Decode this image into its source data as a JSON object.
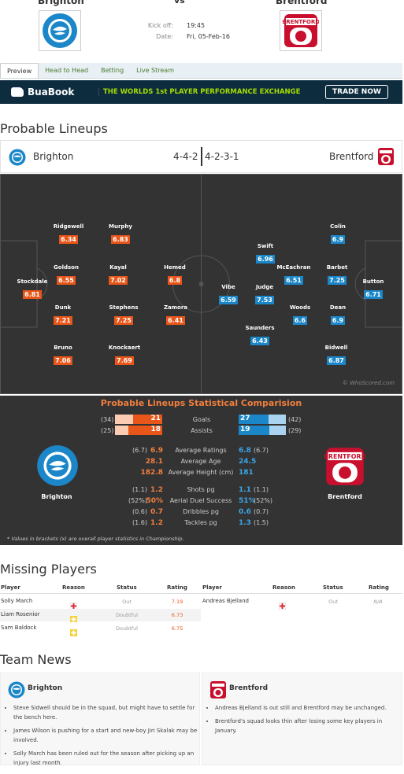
{
  "header": {
    "home_team": "Brighton",
    "vs": "vs",
    "away_team": "Brentford",
    "kickoff_label": "Kick off:",
    "kickoff_value": "19:45",
    "date_label": "Date:",
    "date_value": "Fri, 05-Feb-16"
  },
  "tabs": [
    "Preview",
    "Head to Head",
    "Betting",
    "Live Stream"
  ],
  "ad": {
    "brand": "BuaBook",
    "slogan": "THE WORLDS 1st PLAYER PERFORMANCE EXCHANGE",
    "cta": "TRADE NOW"
  },
  "lineups": {
    "section_title": "Probable Lineups",
    "home_name": "Brighton",
    "home_formation": "4-4-2",
    "away_formation": "4-2-3-1",
    "away_name": "Brentford",
    "watermark": "© WhoScored.com",
    "home_players": [
      {
        "name": "Stockdale",
        "rating": "6.81"
      },
      {
        "name": "Ridgewell",
        "rating": "6.34"
      },
      {
        "name": "Goldson",
        "rating": "6.55"
      },
      {
        "name": "Dunk",
        "rating": "7.21"
      },
      {
        "name": "Bruno",
        "rating": "7.06"
      },
      {
        "name": "Murphy",
        "rating": "6.83"
      },
      {
        "name": "Kayal",
        "rating": "7.02"
      },
      {
        "name": "Stephens",
        "rating": "7.25"
      },
      {
        "name": "Knockaert",
        "rating": "7.69"
      },
      {
        "name": "Hemed",
        "rating": "6.8"
      },
      {
        "name": "Zamora",
        "rating": "6.41"
      }
    ],
    "away_players": [
      {
        "name": "Button",
        "rating": "6.71"
      },
      {
        "name": "Colin",
        "rating": "6.9"
      },
      {
        "name": "Barbet",
        "rating": "7.25"
      },
      {
        "name": "Dean",
        "rating": "6.9"
      },
      {
        "name": "Bidwell",
        "rating": "6.87"
      },
      {
        "name": "McEachran",
        "rating": "6.51"
      },
      {
        "name": "Woods",
        "rating": "6.6"
      },
      {
        "name": "Swift",
        "rating": "6.96"
      },
      {
        "name": "Judge",
        "rating": "7.53"
      },
      {
        "name": "Saunders",
        "rating": "6.43"
      },
      {
        "name": "Vibe",
        "rating": "6.59"
      }
    ]
  },
  "stats": {
    "title": "Probable Lineups Statistical Comparision",
    "home_name": "Brighton",
    "away_name": "Brentford",
    "goals": {
      "label": "Goals",
      "home": "21",
      "home_season": "(34)",
      "away": "27",
      "away_season": "(42)"
    },
    "assists": {
      "label": "Assists",
      "home": "18",
      "home_season": "(25)",
      "away": "19",
      "away_season": "(29)"
    },
    "rows": [
      {
        "label": "Average Ratings",
        "home_b": "(6.7)",
        "home": "6.9",
        "away": "6.8",
        "away_b": "(6.7)"
      },
      {
        "label": "Average Age",
        "home_b": "",
        "home": "28.1",
        "away": "24.5",
        "away_b": ""
      },
      {
        "label": "Average Height (cm)",
        "home_b": "",
        "home": "182.8",
        "away": "181",
        "away_b": ""
      },
      {
        "label": "Shots pg",
        "home_b": "(1.1)",
        "home": "1.2",
        "away": "1.1",
        "away_b": "(1.1)"
      },
      {
        "label": "Aerial Duel Success",
        "home_b": "(52%)",
        "home": "50%",
        "away": "51%",
        "away_b": "(52%)"
      },
      {
        "label": "Dribbles pg",
        "home_b": "(0.6)",
        "home": "0.7",
        "away": "0.6",
        "away_b": "(0.7)"
      },
      {
        "label": "Tackles pg",
        "home_b": "(1.6)",
        "home": "1.2",
        "away": "1.3",
        "away_b": "(1.5)"
      }
    ],
    "footnote": "* Values in brackets (x) are overall player statistics in Championship."
  },
  "missing": {
    "section_title": "Missing Players",
    "headers": [
      "Player",
      "Reason",
      "Status",
      "Rating"
    ],
    "home": [
      {
        "player": "Solly March",
        "status": "Out",
        "rating": "7.19",
        "reason_icon": "injury-icon"
      },
      {
        "player": "Liam Rosenior",
        "status": "Doubtful",
        "rating": "6.73",
        "reason_icon": "doubtful-icon"
      },
      {
        "player": "Sam Baldock",
        "status": "Doubtful",
        "rating": "6.75",
        "reason_icon": "doubtful-icon"
      }
    ],
    "away": [
      {
        "player": "Andreas Bjelland",
        "status": "Out",
        "rating": "N/A",
        "reason_icon": "injury-icon"
      }
    ]
  },
  "news": {
    "section_title": "Team News",
    "home_name": "Brighton",
    "away_name": "Brentford",
    "home_items": [
      "Steve Sidwell should be in the squad, but might have to settle for the bench here.",
      "James Wilson is pushing for a start and new-boy Jiri Skalak may be involved.",
      "Solly March has been ruled out for the season after picking up an injury last month."
    ],
    "away_items": [
      "Andreas Bjelland is out still and Brentford may be unchanged.",
      "Brentford's squad looks thin after losing some key players in January."
    ]
  },
  "colors": {
    "orange": "#e8561a",
    "blue": "#1b87c9",
    "green": "#4a7c2c",
    "dark": "#333333"
  }
}
